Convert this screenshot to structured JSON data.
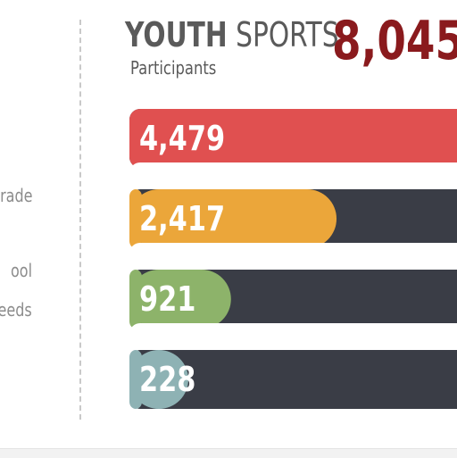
{
  "header": {
    "title_bold": "YOUTH",
    "title_light": "SPORTS",
    "subtitle": "Participants",
    "total": "8,045"
  },
  "left_labels": [
    "rade",
    "ool",
    "eeds"
  ],
  "colors": {
    "track": "#3a3d46",
    "track_end": "#e05050",
    "total": "#8a1a1d",
    "text_gray": "#5a5a5a"
  },
  "chart_data": {
    "type": "bar",
    "orientation": "horizontal",
    "title": "YOUTH SPORTS",
    "subtitle": "Participants",
    "total": 8045,
    "categories": [
      "",
      "",
      "",
      ""
    ],
    "values": [
      4479,
      2417,
      921,
      228
    ],
    "value_labels": [
      "4,479",
      "2,417",
      "921",
      "228"
    ],
    "colors": [
      "#e05050",
      "#eba63a",
      "#8db36a",
      "#8eb2b4"
    ],
    "xlim": [
      0,
      4479
    ],
    "grid": false,
    "legend": "none"
  }
}
